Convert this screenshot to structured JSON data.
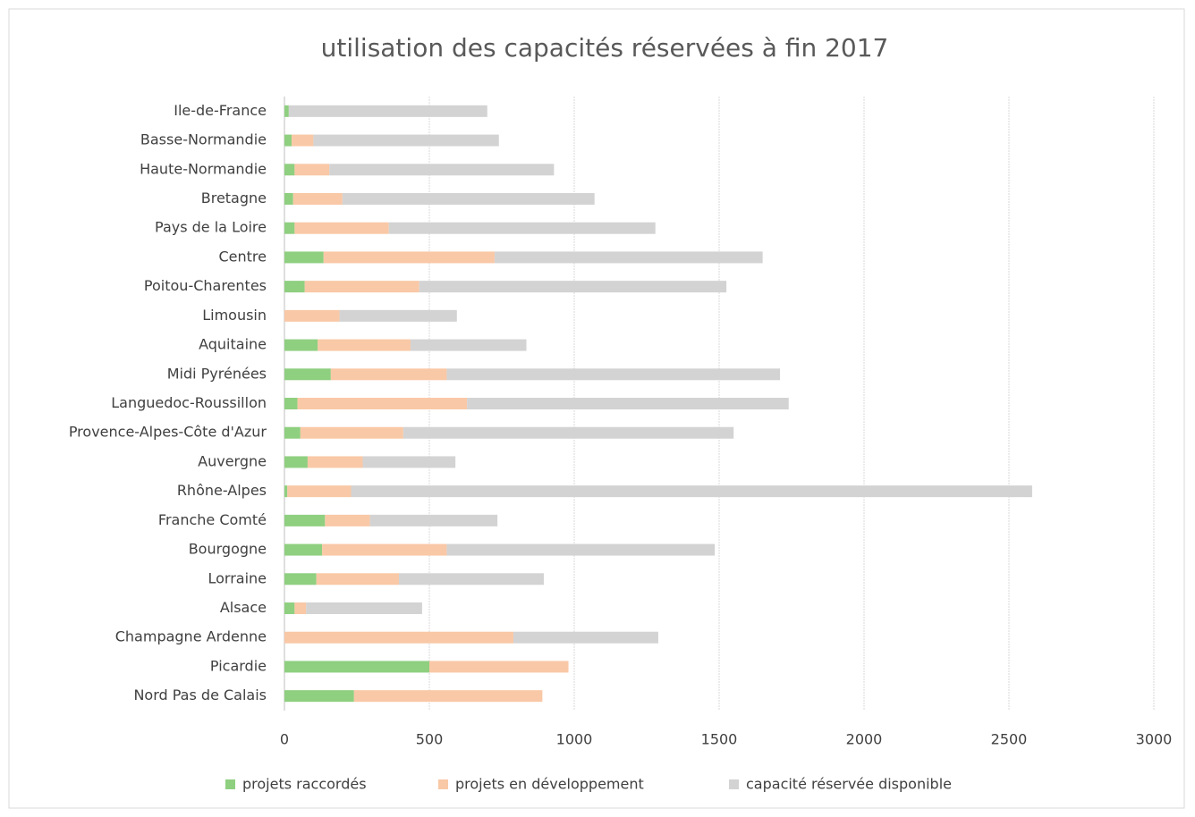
{
  "chart_data": {
    "type": "stacked-bar-horizontal",
    "title": "utilisation des capacités réservées à fin 2017",
    "categories": [
      "Ile-de-France",
      "Basse-Normandie",
      "Haute-Normandie",
      "Bretagne",
      "Pays de la Loire",
      "Centre",
      "Poitou-Charentes",
      "Limousin",
      "Aquitaine",
      "Midi Pyrénées",
      "Languedoc-Roussillon",
      "Provence-Alpes-Côte d'Azur",
      "Auvergne",
      "Rhône-Alpes",
      "Franche Comté",
      "Bourgogne",
      "Lorraine",
      "Alsace",
      "Champagne Ardenne",
      "Picardie",
      "Nord Pas de Calais"
    ],
    "series": [
      {
        "name": "projets raccordés",
        "color": "#8fcf80",
        "values": [
          15,
          25,
          35,
          30,
          35,
          135,
          70,
          0,
          115,
          160,
          45,
          55,
          80,
          10,
          140,
          130,
          110,
          35,
          0,
          500,
          240
        ]
      },
      {
        "name": "projets en développement",
        "color": "#f9c8a6",
        "values": [
          0,
          75,
          120,
          170,
          325,
          590,
          395,
          190,
          320,
          400,
          585,
          355,
          190,
          220,
          155,
          430,
          285,
          40,
          790,
          480,
          650
        ]
      },
      {
        "name": "capacité réservée disponible",
        "color": "#d3d3d3",
        "values": [
          685,
          640,
          775,
          870,
          920,
          925,
          1060,
          405,
          400,
          1150,
          1110,
          1140,
          320,
          2350,
          440,
          925,
          500,
          400,
          500,
          0,
          0
        ]
      }
    ],
    "xlim": [
      0,
      3000
    ],
    "xticks": [
      0,
      500,
      1000,
      1500,
      2000,
      2500,
      3000
    ],
    "grid": true,
    "legend": "bottom"
  }
}
